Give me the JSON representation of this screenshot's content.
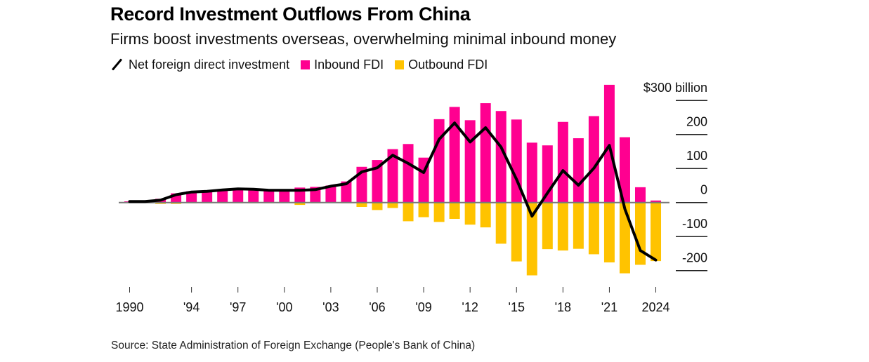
{
  "header": {
    "title": "Record Investment Outflows From China",
    "subtitle": "Firms boost investments overseas, overwhelming minimal inbound money"
  },
  "legend": [
    {
      "label": "Net foreign direct investment",
      "icon": "diagonal-line-icon",
      "color": "#000000"
    },
    {
      "label": "Inbound FDI",
      "icon": "square-swatch-icon",
      "color": "#FF0090"
    },
    {
      "label": "Outbound FDI",
      "icon": "square-swatch-icon",
      "color": "#FFC300"
    }
  ],
  "source": "Source: State Administration of Foreign Exchange (People's Bank of China)",
  "chart_data": {
    "type": "bar",
    "title": "Record Investment Outflows From China",
    "subtitle": "Firms boost investments overseas, overwhelming minimal inbound money",
    "xlabel": "",
    "ylabel": "$ billion",
    "ylim": [
      -250,
      350
    ],
    "y_axis_position": "right",
    "y_ticks": [
      300,
      200,
      100,
      0,
      -100,
      -200
    ],
    "y_tick_labels": [
      "$300 billion",
      "200",
      "100",
      "0",
      "-100",
      "-200"
    ],
    "x_ticks": [
      1990,
      1994,
      1997,
      2000,
      2003,
      2006,
      2009,
      2012,
      2015,
      2018,
      2021,
      2024
    ],
    "x_tick_labels": [
      "1990",
      "'94",
      "'97",
      "'00",
      "'03",
      "'06",
      "'09",
      "'12",
      "'15",
      "'18",
      "'21",
      "2024"
    ],
    "grid": false,
    "legend_position": "top-left",
    "x": [
      1990,
      1991,
      1992,
      1993,
      1994,
      1995,
      1996,
      1997,
      1998,
      1999,
      2000,
      2001,
      2002,
      2003,
      2004,
      2005,
      2006,
      2007,
      2008,
      2009,
      2010,
      2011,
      2012,
      2013,
      2014,
      2015,
      2016,
      2017,
      2018,
      2019,
      2020,
      2021,
      2022,
      2023,
      2024
    ],
    "series": [
      {
        "name": "Inbound FDI",
        "type": "bar",
        "color": "#FF0090",
        "values": [
          3.5,
          4.4,
          11,
          27,
          33,
          35,
          38,
          40,
          39,
          37,
          36,
          44,
          46,
          50,
          62,
          105,
          125,
          157,
          172,
          132,
          245,
          281,
          242,
          292,
          269,
          244,
          176,
          168,
          237,
          189,
          254,
          346,
          192,
          45,
          6
        ]
      },
      {
        "name": "Outbound FDI",
        "type": "bar",
        "color": "#FFC300",
        "values": [
          -1,
          -1,
          -4,
          -4,
          -2,
          -2,
          -2,
          -2,
          -2,
          -2,
          -1,
          -7,
          -2,
          -1,
          -2,
          -13,
          -22,
          -16,
          -55,
          -43,
          -57,
          -48,
          -65,
          -73,
          -121,
          -173,
          -214,
          -137,
          -141,
          -136,
          -152,
          -176,
          -208,
          -183,
          -172
        ]
      },
      {
        "name": "Net foreign direct investment",
        "type": "line",
        "color": "#000000",
        "values": [
          3,
          3,
          7,
          23,
          31,
          33,
          37,
          40,
          39,
          36,
          36,
          36,
          38,
          48,
          55,
          90,
          102,
          139,
          115,
          88,
          186,
          234,
          178,
          220,
          163,
          68,
          -40,
          28,
          94,
          51,
          101,
          168,
          -19,
          -141,
          -169
        ]
      }
    ]
  }
}
